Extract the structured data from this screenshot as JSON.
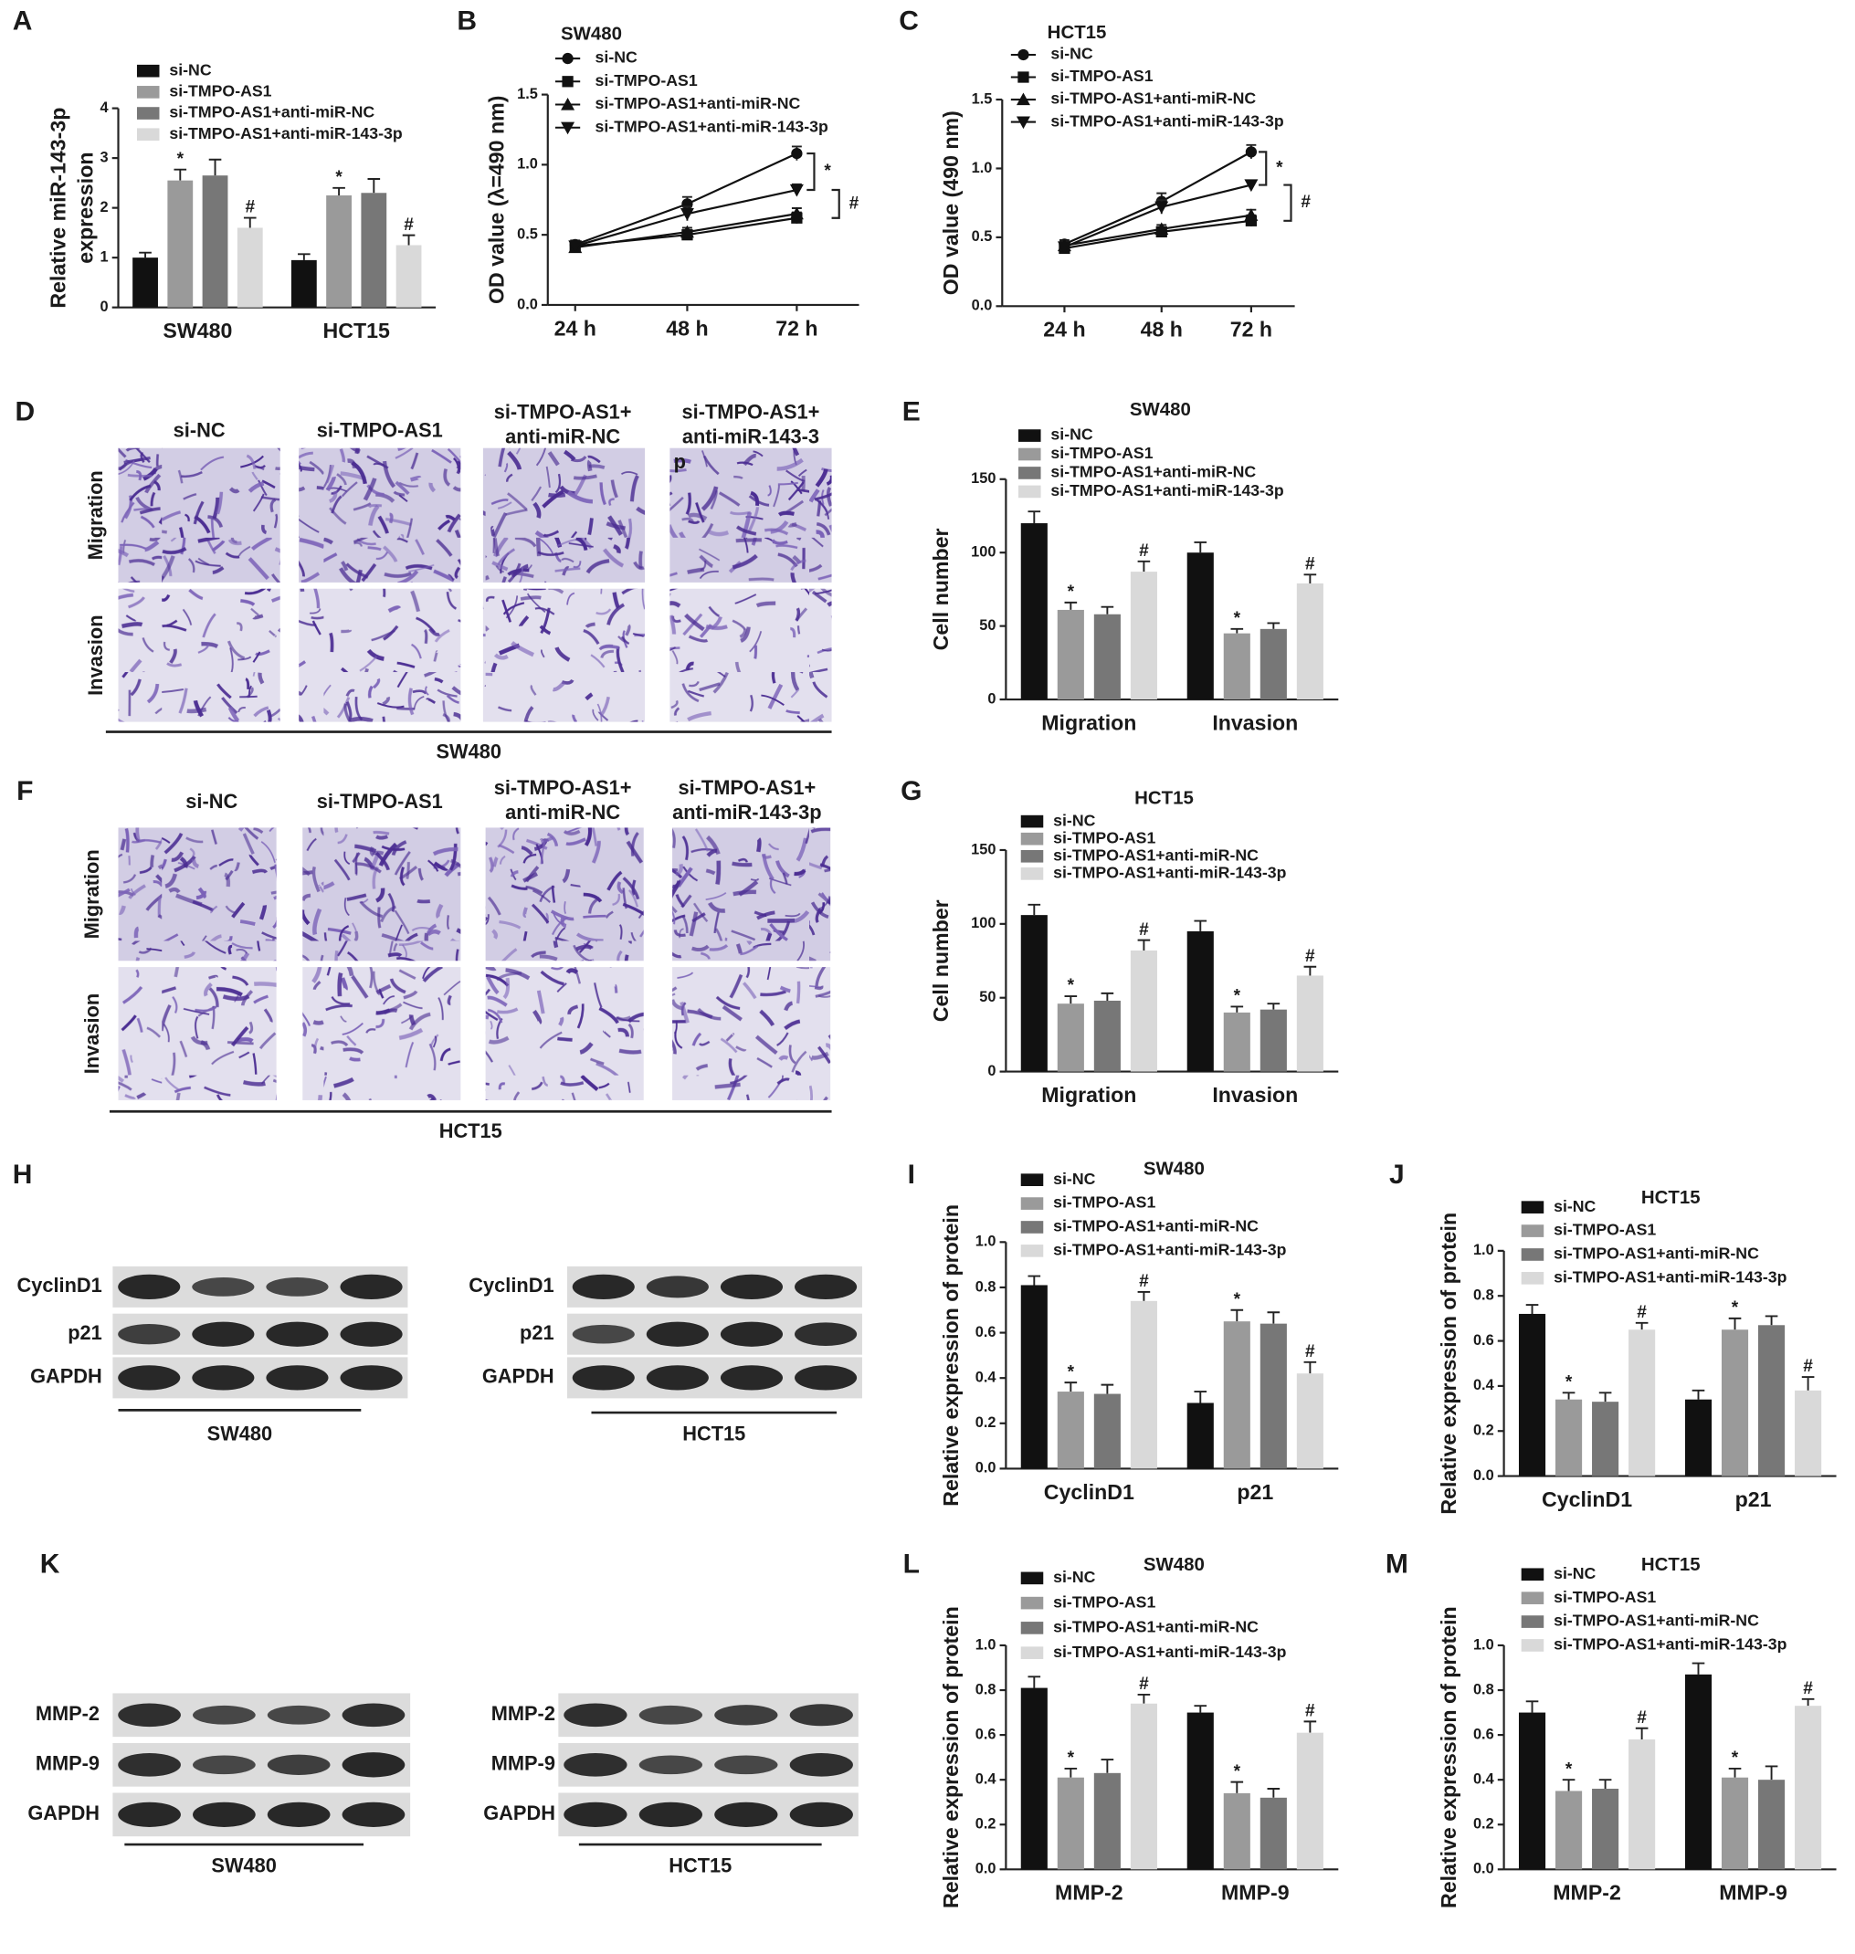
{
  "chart_data": [
    {
      "panel": "A",
      "type": "bar",
      "categories": [
        "SW480",
        "HCT15"
      ],
      "ylabel": [
        "Relative miR-143-3p",
        "expression"
      ],
      "ylim": [
        0,
        4
      ],
      "yticks": [
        0,
        1,
        2,
        3,
        4
      ],
      "series": [
        {
          "name": "si-NC",
          "color": "#111111",
          "values": [
            1.0,
            0.95
          ],
          "errors": [
            0.1,
            0.12
          ]
        },
        {
          "name": "si-TMPO-AS1",
          "color": "#9a9a9a",
          "values": [
            2.55,
            2.25
          ],
          "errors": [
            0.22,
            0.15
          ],
          "markers": [
            "*",
            "*"
          ]
        },
        {
          "name": "si-TMPO-AS1+anti-miR-NC",
          "color": "#777777",
          "values": [
            2.65,
            2.3
          ],
          "errors": [
            0.32,
            0.28
          ]
        },
        {
          "name": "si-TMPO-AS1+anti-miR-143-3p",
          "color": "#d9d9d9",
          "values": [
            1.6,
            1.25
          ],
          "errors": [
            0.2,
            0.2
          ],
          "markers": [
            "#",
            "#"
          ]
        }
      ]
    },
    {
      "panel": "B",
      "type": "line",
      "title": "SW480",
      "categories": [
        "24 h",
        "48 h",
        "72 h"
      ],
      "ylabel": "OD value (λ=490 nm)",
      "ylim": [
        0,
        1.5
      ],
      "yticks": [
        {
          "value": 0,
          "label": "0.0"
        },
        0.5,
        {
          "value": 1,
          "label": "1.0"
        },
        1.5
      ],
      "annotations": [
        "*",
        "#"
      ],
      "series": [
        {
          "name": "si-NC",
          "color": "#111111",
          "symbol": "circle",
          "values": [
            0.43,
            0.72,
            1.08
          ],
          "errors": [
            0.03,
            0.05,
            0.05
          ]
        },
        {
          "name": "si-TMPO-AS1",
          "color": "#111111",
          "symbol": "square",
          "values": [
            0.42,
            0.5,
            0.62
          ],
          "errors": [
            0.03,
            0.03,
            0.04
          ]
        },
        {
          "name": "si-TMPO-AS1+anti-miR-NC",
          "color": "#111111",
          "symbol": "triangle",
          "values": [
            0.41,
            0.52,
            0.65
          ],
          "errors": [
            0.03,
            0.03,
            0.04
          ]
        },
        {
          "name": "si-TMPO-AS1+anti-miR-143-3p",
          "color": "#111111",
          "symbol": "triangle-down",
          "values": [
            0.42,
            0.65,
            0.82
          ],
          "errors": [
            0.03,
            0.05,
            0.04
          ]
        }
      ]
    },
    {
      "panel": "C",
      "type": "line",
      "title": "HCT15",
      "categories": [
        "24 h",
        "48 h",
        "72 h"
      ],
      "ylabel": "OD value (490 nm)",
      "ylim": [
        0,
        1.5
      ],
      "yticks": [
        {
          "value": 0,
          "label": "0.0"
        },
        0.5,
        {
          "value": 1,
          "label": "1.0"
        },
        1.5
      ],
      "annotations": [
        "*",
        "#"
      ],
      "series": [
        {
          "name": "si-NC",
          "color": "#111111",
          "symbol": "circle",
          "values": [
            0.45,
            0.76,
            1.12
          ],
          "errors": [
            0.03,
            0.06,
            0.05
          ]
        },
        {
          "name": "si-TMPO-AS1",
          "color": "#111111",
          "symbol": "square",
          "values": [
            0.42,
            0.54,
            0.62
          ],
          "errors": [
            0.03,
            0.03,
            0.04
          ]
        },
        {
          "name": "si-TMPO-AS1+anti-miR-NC",
          "color": "#111111",
          "symbol": "triangle",
          "values": [
            0.44,
            0.56,
            0.66
          ],
          "errors": [
            0.03,
            0.03,
            0.04
          ]
        },
        {
          "name": "si-TMPO-AS1+anti-miR-143-3p",
          "color": "#111111",
          "symbol": "triangle-down",
          "values": [
            0.43,
            0.72,
            0.88
          ],
          "errors": [
            0.03,
            0.05,
            0.03
          ]
        }
      ]
    },
    {
      "panel": "E",
      "type": "bar",
      "title": "SW480",
      "categories": [
        "Migration",
        "Invasion"
      ],
      "ylabel": "Cell number",
      "ylim": [
        0,
        150
      ],
      "yticks": [
        0,
        50,
        100,
        150
      ],
      "series": [
        {
          "name": "si-NC",
          "color": "#111111",
          "values": [
            120,
            100
          ],
          "errors": [
            8,
            7
          ]
        },
        {
          "name": "si-TMPO-AS1",
          "color": "#9a9a9a",
          "values": [
            61,
            45
          ],
          "errors": [
            5,
            3
          ],
          "markers": [
            "*",
            "*"
          ]
        },
        {
          "name": "si-TMPO-AS1+anti-miR-NC",
          "color": "#777777",
          "values": [
            58,
            48
          ],
          "errors": [
            5,
            4
          ]
        },
        {
          "name": "si-TMPO-AS1+anti-miR-143-3p",
          "color": "#d9d9d9",
          "values": [
            87,
            79
          ],
          "errors": [
            7,
            6
          ],
          "markers": [
            "#",
            "#"
          ]
        }
      ]
    },
    {
      "panel": "G",
      "type": "bar",
      "title": "HCT15",
      "categories": [
        "Migration",
        "Invasion"
      ],
      "ylabel": "Cell number",
      "ylim": [
        0,
        150
      ],
      "yticks": [
        0,
        50,
        100,
        150
      ],
      "series": [
        {
          "name": "si-NC",
          "color": "#111111",
          "values": [
            106,
            95
          ],
          "errors": [
            7,
            7
          ]
        },
        {
          "name": "si-TMPO-AS1",
          "color": "#9a9a9a",
          "values": [
            46,
            40
          ],
          "errors": [
            5,
            4
          ],
          "markers": [
            "*",
            "*"
          ]
        },
        {
          "name": "si-TMPO-AS1+anti-miR-NC",
          "color": "#777777",
          "values": [
            48,
            42
          ],
          "errors": [
            5,
            4
          ]
        },
        {
          "name": "si-TMPO-AS1+anti-miR-143-3p",
          "color": "#d9d9d9",
          "values": [
            82,
            65
          ],
          "errors": [
            7,
            6
          ],
          "markers": [
            "#",
            "#"
          ]
        }
      ]
    },
    {
      "panel": "I",
      "type": "bar",
      "title": "SW480",
      "categories": [
        "CyclinD1",
        "p21"
      ],
      "ylabel": "Relative expression of protein",
      "ylim": [
        0,
        1
      ],
      "yticks": [
        {
          "value": 0,
          "label": "0.0"
        },
        0.2,
        0.4,
        0.6,
        0.8,
        {
          "value": 1,
          "label": "1.0"
        }
      ],
      "series": [
        {
          "name": "si-NC",
          "color": "#111111",
          "values": [
            0.81,
            0.29
          ],
          "errors": [
            0.04,
            0.05
          ]
        },
        {
          "name": "si-TMPO-AS1",
          "color": "#9a9a9a",
          "values": [
            0.34,
            0.65
          ],
          "errors": [
            0.04,
            0.05
          ],
          "markers": [
            "*",
            "*"
          ]
        },
        {
          "name": "si-TMPO-AS1+anti-miR-NC",
          "color": "#777777",
          "values": [
            0.33,
            0.64
          ],
          "errors": [
            0.04,
            0.05
          ]
        },
        {
          "name": "si-TMPO-AS1+anti-miR-143-3p",
          "color": "#d9d9d9",
          "values": [
            0.74,
            0.42
          ],
          "errors": [
            0.04,
            0.05
          ],
          "markers": [
            "#",
            "#"
          ]
        }
      ]
    },
    {
      "panel": "J",
      "type": "bar",
      "title": "HCT15",
      "categories": [
        "CyclinD1",
        "p21"
      ],
      "ylabel": "Relative expression of protein",
      "ylim": [
        0,
        1
      ],
      "yticks": [
        {
          "value": 0,
          "label": "0.0"
        },
        0.2,
        0.4,
        0.6,
        0.8,
        {
          "value": 1,
          "label": "1.0"
        }
      ],
      "series": [
        {
          "name": "si-NC",
          "color": "#111111",
          "values": [
            0.72,
            0.34
          ],
          "errors": [
            0.04,
            0.04
          ]
        },
        {
          "name": "si-TMPO-AS1",
          "color": "#9a9a9a",
          "values": [
            0.34,
            0.65
          ],
          "errors": [
            0.03,
            0.05
          ],
          "markers": [
            "*",
            "*"
          ]
        },
        {
          "name": "si-TMPO-AS1+anti-miR-NC",
          "color": "#777777",
          "values": [
            0.33,
            0.67
          ],
          "errors": [
            0.04,
            0.04
          ]
        },
        {
          "name": "si-TMPO-AS1+anti-miR-143-3p",
          "color": "#d9d9d9",
          "values": [
            0.65,
            0.38
          ],
          "errors": [
            0.03,
            0.06
          ],
          "markers": [
            "#",
            "#"
          ]
        }
      ]
    },
    {
      "panel": "L",
      "type": "bar",
      "title": "SW480",
      "categories": [
        "MMP-2",
        "MMP-9"
      ],
      "ylabel": "Relative expression of protein",
      "ylim": [
        0,
        1
      ],
      "yticks": [
        {
          "value": 0,
          "label": "0.0"
        },
        0.2,
        0.4,
        0.6,
        0.8,
        {
          "value": 1,
          "label": "1.0"
        }
      ],
      "series": [
        {
          "name": "si-NC",
          "color": "#111111",
          "values": [
            0.81,
            0.7
          ],
          "errors": [
            0.05,
            0.03
          ]
        },
        {
          "name": "si-TMPO-AS1",
          "color": "#9a9a9a",
          "values": [
            0.41,
            0.34
          ],
          "errors": [
            0.04,
            0.05
          ],
          "markers": [
            "*",
            "*"
          ]
        },
        {
          "name": "si-TMPO-AS1+anti-miR-NC",
          "color": "#777777",
          "values": [
            0.43,
            0.32
          ],
          "errors": [
            0.06,
            0.04
          ]
        },
        {
          "name": "si-TMPO-AS1+anti-miR-143-3p",
          "color": "#d9d9d9",
          "values": [
            0.74,
            0.61
          ],
          "errors": [
            0.04,
            0.05
          ],
          "markers": [
            "#",
            "#"
          ]
        }
      ]
    },
    {
      "panel": "M",
      "type": "bar",
      "title": "HCT15",
      "categories": [
        "MMP-2",
        "MMP-9"
      ],
      "ylabel": "Relative expression of protein",
      "ylim": [
        0,
        1
      ],
      "yticks": [
        {
          "value": 0,
          "label": "0.0"
        },
        0.2,
        0.4,
        0.6,
        0.8,
        {
          "value": 1,
          "label": "1.0"
        }
      ],
      "series": [
        {
          "name": "si-NC",
          "color": "#111111",
          "values": [
            0.7,
            0.87
          ],
          "errors": [
            0.05,
            0.05
          ]
        },
        {
          "name": "si-TMPO-AS1",
          "color": "#9a9a9a",
          "values": [
            0.35,
            0.41
          ],
          "errors": [
            0.05,
            0.04
          ],
          "markers": [
            "*",
            "*"
          ]
        },
        {
          "name": "si-TMPO-AS1+anti-miR-NC",
          "color": "#777777",
          "values": [
            0.36,
            0.4
          ],
          "errors": [
            0.04,
            0.06
          ]
        },
        {
          "name": "si-TMPO-AS1+anti-miR-143-3p",
          "color": "#d9d9d9",
          "values": [
            0.58,
            0.73
          ],
          "errors": [
            0.05,
            0.03
          ],
          "markers": [
            "#",
            "#"
          ]
        }
      ]
    }
  ],
  "image_panels": [
    {
      "panel": "D",
      "columns": [
        "si-NC",
        "si-TMPO-AS1",
        [
          "si-TMPO-AS1+",
          "anti-miR-NC"
        ],
        [
          "si-TMPO-AS1+",
          "anti-miR-143-3",
          "p"
        ]
      ],
      "rows": [
        "Migration",
        "Invasion"
      ],
      "cell_line": "SW480"
    },
    {
      "panel": "F",
      "columns": [
        "si-NC",
        "si-TMPO-AS1",
        [
          "si-TMPO-AS1+",
          "anti-miR-NC"
        ],
        [
          "si-TMPO-AS1+",
          "anti-miR-143-3p"
        ]
      ],
      "rows": [
        "Migration",
        "Invasion"
      ],
      "cell_line": "HCT15"
    }
  ],
  "blots": [
    {
      "panel": "H",
      "groups": [
        {
          "rows": [
            "CyclinD1",
            "p21",
            "GAPDH"
          ],
          "cell_line": "SW480"
        },
        {
          "rows": [
            "CyclinD1",
            "p21",
            "GAPDH"
          ],
          "cell_line": "HCT15"
        }
      ]
    },
    {
      "panel": "K",
      "groups": [
        {
          "rows": [
            "MMP-2",
            "MMP-9",
            "GAPDH"
          ],
          "cell_line": "SW480"
        },
        {
          "rows": [
            "MMP-2",
            "MMP-9",
            "GAPDH"
          ],
          "cell_line": "HCT15"
        }
      ]
    }
  ]
}
